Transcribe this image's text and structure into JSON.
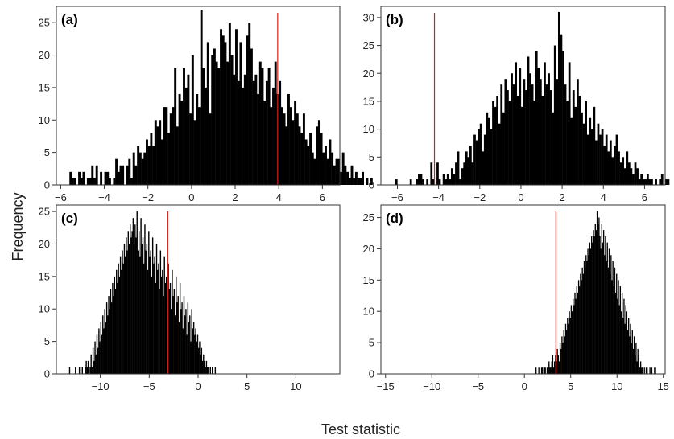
{
  "figure": {
    "xlabel": "Test statistic",
    "ylabel": "Frequency"
  },
  "chart_data": [
    {
      "type": "bar",
      "panel_label": "(a)",
      "xlim": [
        -6.2,
        6.8
      ],
      "ylim": [
        0,
        27.5
      ],
      "xticks": [
        -6,
        -4,
        -2,
        0,
        2,
        4,
        6
      ],
      "yticks": [
        0,
        5,
        10,
        15,
        20,
        25
      ],
      "bin_start": -5.6,
      "bin_width": 0.1,
      "counts": [
        2,
        1,
        1,
        0,
        2,
        1,
        2,
        0,
        1,
        1,
        3,
        1,
        3,
        0,
        2,
        0,
        2,
        2,
        1,
        0,
        1,
        4,
        2,
        3,
        3,
        0,
        3,
        4,
        1,
        5,
        3,
        6,
        5,
        4,
        5,
        7,
        6,
        8,
        6,
        10,
        9,
        10,
        7,
        12,
        12,
        8,
        11,
        12,
        18,
        9,
        14,
        13,
        18,
        15,
        17,
        11,
        20,
        10,
        14,
        12,
        27,
        18,
        15,
        22,
        11,
        20,
        21,
        19,
        18,
        24,
        23,
        22,
        19,
        25,
        20,
        17,
        24,
        16,
        22,
        15,
        17,
        23,
        25,
        21,
        16,
        17,
        14,
        19,
        18,
        13,
        16,
        18,
        12,
        15,
        19,
        14,
        16,
        12,
        11,
        9,
        14,
        12,
        10,
        13,
        11,
        9,
        8,
        11,
        7,
        6,
        8,
        5,
        4,
        9,
        10,
        8,
        5,
        6,
        4,
        7,
        5,
        3,
        4,
        4,
        2,
        5,
        3,
        2,
        1,
        3,
        1,
        2,
        1,
        1,
        2,
        0,
        1,
        0,
        1
      ],
      "reference_value": 3.95,
      "reference_color": "#d62020"
    },
    {
      "type": "bar",
      "panel_label": "(b)",
      "xlim": [
        -6.8,
        7.0
      ],
      "ylim": [
        0,
        32
      ],
      "xticks": [
        -6,
        -4,
        -2,
        0,
        2,
        4,
        6
      ],
      "yticks": [
        0,
        5,
        10,
        15,
        20,
        25,
        30
      ],
      "bin_start": -6.1,
      "bin_width": 0.1,
      "counts": [
        1,
        0,
        0,
        0,
        0,
        0,
        0,
        1,
        0,
        0,
        1,
        2,
        2,
        1,
        0,
        1,
        0,
        4,
        1,
        0,
        4,
        1,
        0,
        2,
        1,
        2,
        1,
        3,
        2,
        4,
        6,
        1,
        3,
        4,
        6,
        5,
        7,
        4,
        9,
        8,
        10,
        11,
        6,
        9,
        13,
        12,
        10,
        15,
        14,
        16,
        11,
        18,
        13,
        19,
        17,
        15,
        20,
        18,
        22,
        16,
        21,
        14,
        19,
        17,
        23,
        20,
        18,
        15,
        24,
        21,
        19,
        16,
        22,
        18,
        20,
        17,
        13,
        25,
        19,
        31,
        27,
        24,
        18,
        15,
        22,
        12,
        17,
        14,
        19,
        16,
        13,
        11,
        15,
        9,
        12,
        10,
        14,
        8,
        11,
        9,
        10,
        7,
        9,
        6,
        8,
        5,
        7,
        9,
        6,
        4,
        5,
        3,
        6,
        4,
        3,
        2,
        4,
        3,
        1,
        2,
        1,
        1,
        2,
        1,
        1,
        0,
        1,
        0,
        1,
        2,
        0,
        1,
        1,
        0
      ],
      "reference_value": -4.2,
      "reference_color": "#d62020"
    },
    {
      "type": "bar",
      "panel_label": "(c)",
      "xlim": [
        -14.5,
        14.5
      ],
      "ylim": [
        0,
        26
      ],
      "xticks": [
        -10,
        -5,
        0,
        5,
        10
      ],
      "yticks": [
        0,
        5,
        10,
        15,
        20,
        25
      ],
      "bin_start": -13.2,
      "bin_width": 0.1,
      "counts": [
        1,
        0,
        0,
        0,
        0,
        0,
        1,
        0,
        0,
        0,
        1,
        0,
        0,
        1,
        0,
        0,
        1,
        2,
        1,
        2,
        0,
        1,
        3,
        1,
        4,
        2,
        5,
        3,
        6,
        4,
        7,
        5,
        8,
        6,
        9,
        7,
        10,
        8,
        11,
        9,
        12,
        10,
        13,
        11,
        14,
        12,
        15,
        13,
        16,
        14,
        17,
        15,
        18,
        16,
        19,
        17,
        20,
        18,
        21,
        19,
        22,
        20,
        23,
        21,
        22,
        24,
        20,
        23,
        21,
        25,
        19,
        22,
        18,
        24,
        20,
        21,
        17,
        23,
        19,
        20,
        16,
        22,
        18,
        19,
        15,
        21,
        17,
        18,
        14,
        20,
        16,
        17,
        13,
        19,
        15,
        16,
        12,
        18,
        14,
        15,
        11,
        17,
        13,
        14,
        10,
        16,
        12,
        13,
        9,
        15,
        11,
        12,
        8,
        14,
        10,
        11,
        7,
        12,
        9,
        10,
        6,
        11,
        8,
        9,
        5,
        10,
        7,
        8,
        6,
        7,
        5,
        6,
        4,
        5,
        3,
        4,
        2,
        3,
        2,
        1,
        2,
        1,
        1,
        0,
        1,
        0,
        1,
        0,
        0,
        1
      ],
      "reference_value": -3.1,
      "reference_color": "#d62020"
    },
    {
      "type": "bar",
      "panel_label": "(d)",
      "xlim": [
        -15.5,
        15.2
      ],
      "ylim": [
        0,
        27
      ],
      "xticks": [
        -15,
        -10,
        -5,
        0,
        5,
        10,
        15
      ],
      "yticks": [
        0,
        5,
        10,
        15,
        20,
        25
      ],
      "bin_start": 1.2,
      "bin_width": 0.1,
      "counts": [
        1,
        0,
        0,
        1,
        0,
        0,
        1,
        1,
        0,
        1,
        1,
        0,
        1,
        1,
        2,
        1,
        1,
        2,
        3,
        1,
        2,
        3,
        2,
        4,
        3,
        2,
        5,
        4,
        6,
        5,
        7,
        6,
        8,
        7,
        9,
        8,
        10,
        9,
        11,
        10,
        12,
        11,
        13,
        12,
        14,
        13,
        15,
        14,
        16,
        15,
        17,
        16,
        18,
        17,
        19,
        18,
        20,
        19,
        21,
        20,
        22,
        21,
        23,
        22,
        24,
        23,
        26,
        24,
        25,
        22,
        20,
        24,
        21,
        23,
        19,
        22,
        18,
        21,
        17,
        20,
        16,
        19,
        15,
        18,
        14,
        17,
        13,
        16,
        12,
        15,
        11,
        14,
        10,
        13,
        9,
        12,
        8,
        11,
        10,
        7,
        9,
        6,
        8,
        5,
        7,
        4,
        6,
        3,
        5,
        2,
        4,
        3,
        1,
        2,
        1,
        1,
        0,
        1,
        0,
        1,
        1,
        0,
        0,
        1,
        0,
        1,
        0,
        0,
        1,
        1
      ],
      "reference_value": 3.4,
      "reference_color": "#d62020"
    }
  ]
}
